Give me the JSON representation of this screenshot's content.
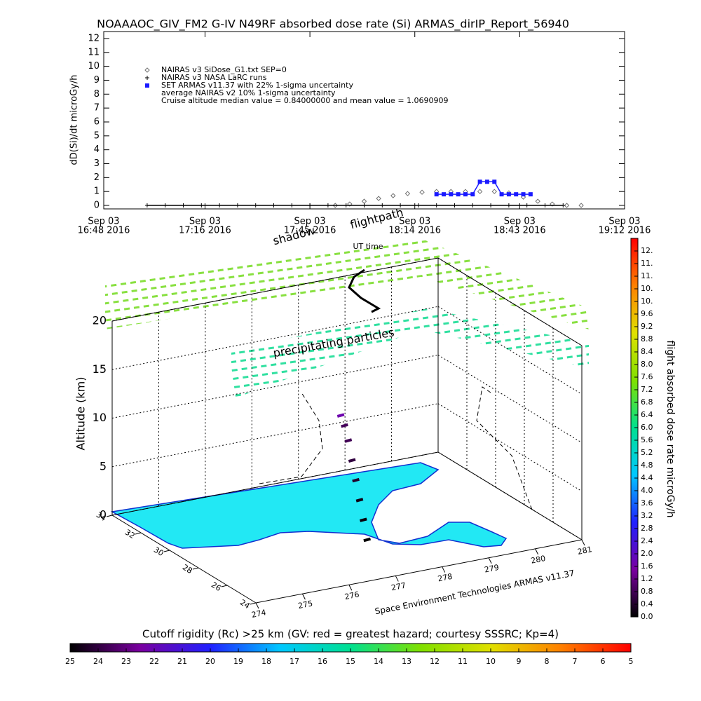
{
  "chart_data": [
    {
      "type": "line",
      "title": "NOAAAOC_GIV_FM2 G-IV   N49RF  absorbed dose rate (Si) ARMAS_dirIP_Report_56940",
      "y_label": "dD(Si)/dt microGy/h",
      "x_label": "UT time",
      "xlim": [
        "16:48",
        "19:12"
      ],
      "xticks": [
        {
          "value": "16:48",
          "label": [
            "Sep 03",
            "16:48 2016"
          ]
        },
        {
          "value": "17:16",
          "label": [
            "Sep 03",
            "17:16 2016"
          ]
        },
        {
          "value": "17:45",
          "label": [
            "Sep 03",
            "17:45 2016"
          ]
        },
        {
          "value": "18:14",
          "label": [
            "Sep 03",
            "18:14 2016"
          ]
        },
        {
          "value": "18:43",
          "label": [
            "Sep 03",
            "18:43 2016"
          ]
        },
        {
          "value": "19:12",
          "label": [
            "Sep 03",
            "19:12 2016"
          ]
        }
      ],
      "ylim": [
        -0.25,
        12.5
      ],
      "yticks": [
        0,
        1,
        2,
        3,
        4,
        5,
        6,
        7,
        8,
        9,
        10,
        11,
        12
      ],
      "series": [
        {
          "name": "NAIRAS v3 SiDose_G1.txt SEP=0",
          "color": "#707070",
          "marker": "diamond",
          "line": false,
          "x": [
            "17:52",
            "17:56",
            "18:00",
            "18:04",
            "18:08",
            "18:12",
            "18:16",
            "18:20",
            "18:24",
            "18:28",
            "18:32",
            "18:36",
            "18:40",
            "18:44",
            "18:48",
            "18:52",
            "18:56",
            "19:00"
          ],
          "values": [
            0,
            0.1,
            0.3,
            0.5,
            0.7,
            0.85,
            0.95,
            1.0,
            1.0,
            1.0,
            1.0,
            1.0,
            0.9,
            0.6,
            0.3,
            0.1,
            0,
            0
          ]
        },
        {
          "name": "NAIRAS v3 NASA LaRC runs",
          "color": "#000000",
          "marker": "cross",
          "line": true,
          "x": [
            "17:00",
            "17:05",
            "17:10",
            "17:15",
            "17:20",
            "17:25",
            "17:30",
            "17:35",
            "17:40",
            "17:45",
            "17:50",
            "17:55",
            "18:00",
            "18:05",
            "18:10",
            "18:15",
            "18:20",
            "18:25",
            "18:30",
            "18:35",
            "18:40",
            "18:45",
            "18:50",
            "18:55"
          ],
          "values": [
            0,
            0,
            0,
            0,
            0,
            0,
            0,
            0,
            0,
            0,
            0,
            0,
            0,
            0,
            0,
            0,
            0,
            0,
            0,
            0,
            0,
            0,
            0,
            0
          ]
        },
        {
          "name": "SET ARMAS v11.37 with 22% 1-sigma uncertainty",
          "color": "#1a1aff",
          "marker": "square",
          "line": true,
          "x": [
            "18:20",
            "18:22",
            "18:24",
            "18:26",
            "18:28",
            "18:30",
            "18:32",
            "18:34",
            "18:36",
            "18:38",
            "18:40",
            "18:42",
            "18:44",
            "18:46"
          ],
          "values": [
            0.8,
            0.8,
            0.8,
            0.8,
            0.8,
            0.8,
            1.7,
            1.7,
            1.7,
            0.8,
            0.8,
            0.8,
            0.8,
            0.8
          ]
        }
      ],
      "annotations": [
        "average NAIRAS v2 10% 1-sigma uncertainty",
        "Cruise altitude median value = 0.84000000 and mean value = 1.0690909"
      ]
    },
    {
      "type": "scatter3d",
      "z_label": "Altitude (km)",
      "xlim": [
        274,
        281
      ],
      "xticks": [
        274,
        275,
        276,
        277,
        278,
        279,
        280,
        281
      ],
      "ylim": [
        24,
        34
      ],
      "yticks": [
        24,
        26,
        28,
        30,
        32,
        34
      ],
      "zlim": [
        0,
        20
      ],
      "zticks": [
        0,
        5,
        10,
        15,
        20
      ],
      "annotations": [
        "shadow",
        "flightpath",
        "precipitating particles",
        "Space Environment Technologies ARMAS v11.37"
      ],
      "series": [
        {
          "name": "flightpath",
          "x": [
            277.5,
            277.45,
            277.4,
            277.35,
            277.3,
            277.25,
            277.2,
            277.15
          ],
          "y": [
            27.6,
            27.7,
            27.8,
            27.9,
            28.0,
            28.1,
            28.2,
            28.3
          ],
          "z": [
            0,
            2,
            4,
            6,
            8,
            10,
            11.5,
            12.5
          ],
          "values": [
            0,
            0.1,
            0.2,
            0.4,
            0.6,
            0.8,
            0.84,
            1.7
          ]
        }
      ]
    },
    {
      "type": "colorbar",
      "orientation": "vertical",
      "title": "flight absorbed dose rate microGy/h",
      "lim": [
        0,
        12
      ],
      "ticks": [
        {
          "value": 0,
          "label": "0.0"
        },
        0.4,
        0.8,
        1.2,
        1.6,
        {
          "value": 2,
          "label": "2.0"
        },
        2.4,
        2.8,
        3.2,
        3.6,
        {
          "value": 4,
          "label": "4.0"
        },
        4.4,
        4.8,
        5.2,
        5.6,
        {
          "value": 6,
          "label": "6.0"
        },
        6.4,
        6.8,
        7.2,
        7.6,
        {
          "value": 8,
          "label": "8.0"
        },
        8.4,
        8.8,
        9.2,
        9.6,
        {
          "value": 10,
          "label": "10."
        },
        {
          "value": 10.4,
          "label": "10."
        },
        {
          "value": 10.8,
          "label": "11."
        },
        {
          "value": 11.2,
          "label": "11."
        },
        {
          "value": 11.6,
          "label": "12."
        }
      ],
      "colors": [
        "#000000",
        "#7a00a0",
        "#2020ff",
        "#00c8ff",
        "#00e090",
        "#80e000",
        "#e0e000",
        "#ff8000",
        "#ff0000"
      ]
    },
    {
      "type": "colorbar",
      "orientation": "horizontal",
      "title": "Cutoff rigidity (Rc) >25 km (GV: red = greatest hazard; courtesy SSSRC; Kp=4)",
      "lim": [
        25,
        5
      ],
      "ticks": [
        25,
        24,
        23,
        22,
        21,
        20,
        19,
        18,
        17,
        16,
        15,
        14,
        13,
        12,
        11,
        10,
        9,
        8,
        7,
        6,
        5
      ],
      "colors": [
        "#000000",
        "#7a00a0",
        "#2020ff",
        "#00c8ff",
        "#00e090",
        "#80e000",
        "#e0e000",
        "#ff8000",
        "#ff0000"
      ]
    }
  ]
}
